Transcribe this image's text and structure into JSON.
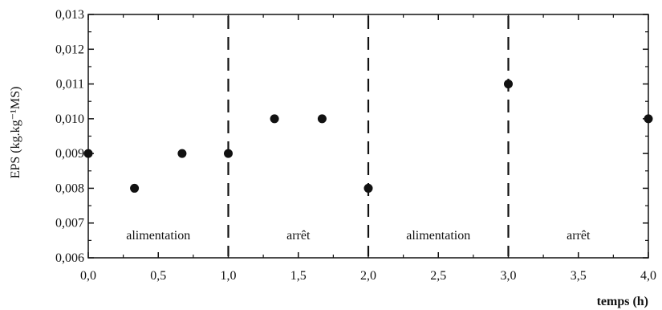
{
  "chart_data": {
    "type": "scatter",
    "title": "",
    "xlabel": "temps (h)",
    "ylabel": "EPS (kg.kg⁻¹MS)",
    "xlim": [
      0.0,
      4.0
    ],
    "ylim": [
      0.006,
      0.013
    ],
    "x_ticks": [
      "0,0",
      "0,5",
      "1,0",
      "1,5",
      "2,0",
      "2,5",
      "3,0",
      "3,5",
      "4,0"
    ],
    "y_ticks": [
      "0,006",
      "0,007",
      "0,008",
      "0,009",
      "0,010",
      "0,011",
      "0,012",
      "0,013"
    ],
    "grid": false,
    "points": [
      {
        "x": 0.0,
        "y": 0.009
      },
      {
        "x": 0.33,
        "y": 0.008
      },
      {
        "x": 0.67,
        "y": 0.009
      },
      {
        "x": 1.0,
        "y": 0.009
      },
      {
        "x": 1.33,
        "y": 0.01
      },
      {
        "x": 1.67,
        "y": 0.01
      },
      {
        "x": 2.0,
        "y": 0.008
      },
      {
        "x": 3.0,
        "y": 0.011
      },
      {
        "x": 4.0,
        "y": 0.01
      }
    ],
    "vertical_lines": [
      1.0,
      2.0,
      3.0
    ],
    "regions": [
      {
        "label": "alimentation",
        "from": 0.0,
        "to": 1.0
      },
      {
        "label": "arrêt",
        "from": 1.0,
        "to": 2.0
      },
      {
        "label": "alimentation",
        "from": 2.0,
        "to": 3.0
      },
      {
        "label": "arrêt",
        "from": 3.0,
        "to": 4.0
      }
    ]
  }
}
